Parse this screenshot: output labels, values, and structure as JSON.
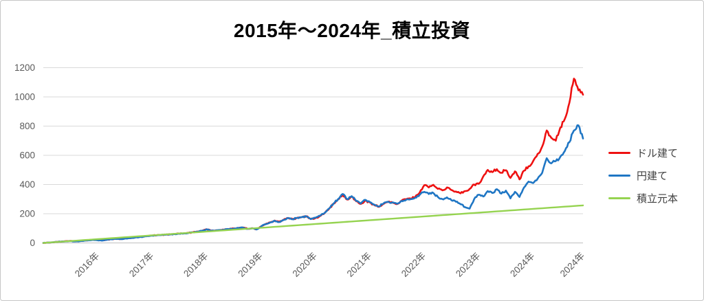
{
  "title": "2015年～2024年_積立投資",
  "colors": {
    "dollar": "#ee1111",
    "yen": "#1f76c4",
    "principal": "#95d350",
    "grid": "#d9d9d9",
    "axis_line": "#bfbfbf",
    "tick_text": "#595959",
    "legend_text": "#3f3f3f",
    "title_text": "#000000"
  },
  "y_axis": {
    "ticks": [
      0,
      200,
      400,
      600,
      800,
      1000,
      1200
    ]
  },
  "x_axis": {
    "tick_indices": [
      12,
      24,
      36,
      48,
      60,
      72,
      84,
      96,
      108,
      119
    ],
    "tick_labels": [
      "2016年",
      "2017年",
      "2018年",
      "2019年",
      "2020年",
      "2021年",
      "2022年",
      "2023年",
      "2024年",
      "2024年"
    ]
  },
  "chart_data": {
    "type": "line",
    "title": "2015年～2024年_積立投資",
    "x_start_year": 2015,
    "points_per_year": 12,
    "n_points": 120,
    "ylim": [
      0,
      1200
    ],
    "grid": true,
    "legend_position": "right",
    "series": [
      {
        "name": "ドル建て",
        "color_key": "dollar",
        "values": [
          0,
          2,
          4,
          7,
          9,
          12,
          14,
          11,
          13,
          16,
          19,
          21,
          19,
          17,
          22,
          26,
          28,
          27,
          31,
          34,
          36,
          39,
          43,
          48,
          51,
          53,
          55,
          57,
          59,
          61,
          64,
          66,
          69,
          73,
          78,
          84,
          94,
          84,
          86,
          89,
          92,
          95,
          99,
          103,
          106,
          97,
          101,
          93,
          113,
          129,
          141,
          153,
          144,
          159,
          171,
          163,
          173,
          177,
          183,
          164,
          170,
          184,
          203,
          233,
          268,
          298,
          332,
          297,
          317,
          285,
          267,
          292,
          277,
          259,
          247,
          267,
          280,
          276,
          266,
          290,
          298,
          304,
          315,
          345,
          395,
          380,
          398,
          370,
          360,
          380,
          362,
          352,
          340,
          355,
          370,
          400,
          405,
          455,
          500,
          485,
          505,
          480,
          498,
          445,
          490,
          435,
          495,
          525,
          560,
          610,
          660,
          770,
          720,
          700,
          790,
          850,
          960,
          1125,
          1045,
          1015
        ]
      },
      {
        "name": "円建て",
        "color_key": "yen",
        "values": [
          0,
          2,
          4,
          7,
          9,
          11,
          13,
          10,
          12,
          15,
          18,
          20,
          18,
          16,
          21,
          25,
          27,
          26,
          30,
          33,
          35,
          38,
          42,
          47,
          50,
          52,
          54,
          56,
          58,
          60,
          63,
          65,
          68,
          72,
          77,
          83,
          93,
          83,
          85,
          88,
          91,
          94,
          98,
          102,
          105,
          96,
          100,
          92,
          112,
          128,
          140,
          152,
          143,
          158,
          170,
          162,
          172,
          176,
          182,
          163,
          172,
          186,
          205,
          235,
          270,
          300,
          335,
          300,
          320,
          288,
          270,
          295,
          280,
          262,
          250,
          270,
          282,
          278,
          268,
          288,
          295,
          300,
          310,
          330,
          350,
          335,
          342,
          315,
          300,
          312,
          292,
          282,
          265,
          245,
          235,
          300,
          330,
          318,
          355,
          342,
          368,
          338,
          358,
          305,
          350,
          315,
          380,
          420,
          410,
          440,
          480,
          580,
          545,
          560,
          590,
          630,
          690,
          770,
          805,
          715
        ]
      },
      {
        "name": "積立元本",
        "color_key": "principal",
        "linear": [
          0,
          257
        ],
        "values": null
      }
    ]
  }
}
